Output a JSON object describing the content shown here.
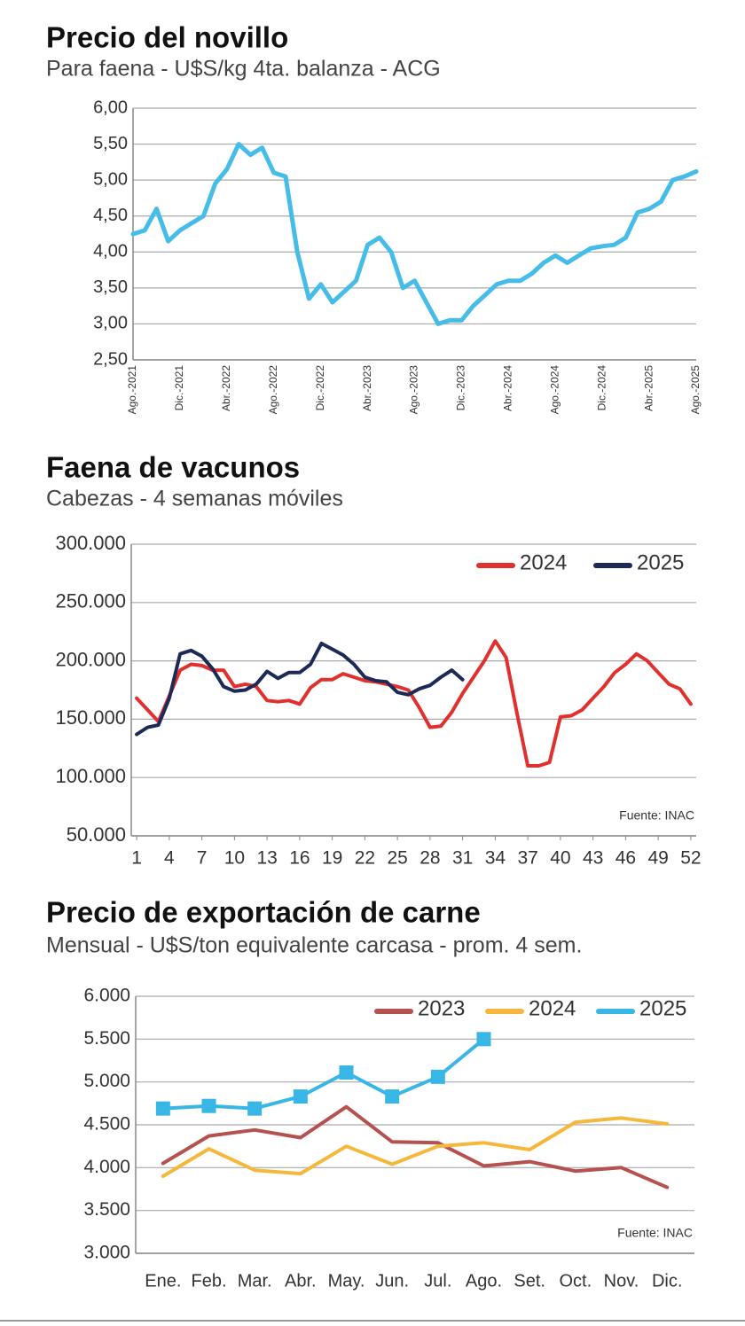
{
  "chart_data": [
    {
      "type": "line",
      "title": "Precio del novillo",
      "subtitle": "Para faena - U$S/kg 4ta. balanza - ACG",
      "categories": [
        "Ago.-2021",
        null,
        null,
        null,
        "Dic.-2021",
        null,
        null,
        null,
        "Abr.-2022",
        null,
        null,
        null,
        "Ago.-2022",
        null,
        null,
        null,
        "Dic.-2022",
        null,
        null,
        null,
        "Abr.-2023",
        null,
        null,
        null,
        "Ago.-2023",
        null,
        null,
        null,
        "Dic.-2023",
        null,
        null,
        null,
        "Abr.-2024",
        null,
        null,
        null,
        "Ago.-2024",
        null,
        null,
        null,
        "Dic.-2024",
        null,
        null,
        null,
        "Abr.-2025",
        null,
        null,
        null,
        "Ago.-2025"
      ],
      "values": [
        4.25,
        4.3,
        4.6,
        4.15,
        4.3,
        4.4,
        4.5,
        4.95,
        5.15,
        5.5,
        5.35,
        5.45,
        5.1,
        5.05,
        4.0,
        3.35,
        3.55,
        3.3,
        3.45,
        3.6,
        4.1,
        4.2,
        4.0,
        3.5,
        3.6,
        3.3,
        3.0,
        3.05,
        3.05,
        3.25,
        3.4,
        3.55,
        3.6,
        3.6,
        3.7,
        3.85,
        3.95,
        3.85,
        3.95,
        4.05,
        4.08,
        4.1,
        4.2,
        4.55,
        4.6,
        4.7,
        5.0,
        5.05,
        5.12
      ],
      "color": "#45bde8",
      "ylim": [
        2.5,
        6
      ],
      "yticks": [
        {
          "value": 2.5,
          "label": "2,50"
        },
        {
          "value": 3,
          "label": "3,00"
        },
        {
          "value": 3.5,
          "label": "3,50"
        },
        {
          "value": 4,
          "label": "4,00"
        },
        {
          "value": 4.5,
          "label": "4,50"
        },
        {
          "value": 5,
          "label": "5,00"
        },
        {
          "value": 5.5,
          "label": "5,50"
        },
        {
          "value": 6,
          "label": "6,00"
        }
      ],
      "grid": true
    },
    {
      "type": "line",
      "title": "Faena de vacunos",
      "subtitle": "Cabezas - 4 semanas móviles",
      "x": [
        1,
        2,
        3,
        4,
        5,
        6,
        7,
        8,
        9,
        10,
        11,
        12,
        13,
        14,
        15,
        16,
        17,
        18,
        19,
        20,
        21,
        22,
        23,
        24,
        25,
        26,
        27,
        28,
        29,
        30,
        31,
        32,
        33,
        34,
        35,
        36,
        37,
        38,
        39,
        40,
        41,
        42,
        43,
        44,
        45,
        46,
        47,
        48,
        49,
        50,
        51,
        52
      ],
      "series": [
        {
          "name": "2024",
          "color": "#e0312f",
          "values": [
            168000,
            158000,
            148000,
            170000,
            192000,
            197000,
            196000,
            192000,
            192000,
            178000,
            180000,
            178000,
            166000,
            165000,
            166000,
            163000,
            177000,
            184000,
            184000,
            189000,
            186000,
            183000,
            182000,
            180000,
            178000,
            175000,
            160000,
            143000,
            144000,
            156000,
            172000,
            186000,
            200000,
            217000,
            203000,
            155000,
            110000,
            110000,
            113000,
            152000,
            153000,
            158000,
            168000,
            178000,
            190000,
            197000,
            206000,
            200000,
            190000,
            180000,
            176000,
            163000
          ]
        },
        {
          "name": "2025",
          "color": "#1d2a55",
          "values": [
            137000,
            143000,
            145000,
            168000,
            206000,
            209000,
            204000,
            193000,
            178000,
            174000,
            175000,
            180000,
            191000,
            185000,
            190000,
            190000,
            197000,
            215000,
            210000,
            205000,
            197000,
            186000,
            183000,
            182000,
            173000,
            171000,
            176000,
            179000,
            186000,
            192000,
            184000,
            null,
            null,
            null,
            null,
            null,
            null,
            null,
            null,
            null,
            null,
            null,
            null,
            null,
            null,
            null,
            null,
            null,
            null,
            null,
            null,
            null
          ]
        }
      ],
      "xlim": [
        0.5,
        52.5
      ],
      "xticks": [
        1,
        4,
        7,
        10,
        13,
        16,
        19,
        22,
        25,
        28,
        31,
        34,
        37,
        40,
        43,
        46,
        49,
        52
      ],
      "ylim": [
        50000,
        300000
      ],
      "yticks": [
        {
          "value": 50000,
          "label": "50.000"
        },
        {
          "value": 100000,
          "label": "100.000"
        },
        {
          "value": 150000,
          "label": "150.000"
        },
        {
          "value": 200000,
          "label": "200.000"
        },
        {
          "value": 250000,
          "label": "250.000"
        },
        {
          "value": 300000,
          "label": "300.000"
        }
      ],
      "grid": true,
      "legend": "upper right",
      "annotation": "Fuente: INAC"
    },
    {
      "type": "line",
      "title": "Precio de exportación de carne",
      "subtitle": "Mensual - U$S/ton equivalente carcasa - prom. 4 sem.",
      "categories": [
        "Ene.",
        "Feb.",
        "Mar.",
        "Abr.",
        "May.",
        "Jun.",
        "Jul.",
        "Ago.",
        "Set.",
        "Oct.",
        "Nov.",
        "Dic."
      ],
      "series": [
        {
          "name": "2023",
          "color": "#b5524f",
          "values": [
            4050,
            4370,
            4440,
            4350,
            4710,
            4300,
            4290,
            4020,
            4070,
            3960,
            4000,
            3770
          ]
        },
        {
          "name": "2024",
          "color": "#f5b83c",
          "values": [
            3900,
            4220,
            3970,
            3930,
            4250,
            4040,
            4250,
            4290,
            4210,
            4530,
            4580,
            4510
          ]
        },
        {
          "name": "2025",
          "color": "#38b6e6",
          "marker": "square",
          "values": [
            4690,
            4720,
            4690,
            4830,
            5110,
            4830,
            5060,
            5500,
            null,
            null,
            null,
            null
          ]
        }
      ],
      "ylim": [
        3000,
        6000
      ],
      "yticks": [
        {
          "value": 3000,
          "label": "3.000"
        },
        {
          "value": 3500,
          "label": "3.500"
        },
        {
          "value": 4000,
          "label": "4.000"
        },
        {
          "value": 4500,
          "label": "4.500"
        },
        {
          "value": 5000,
          "label": "5.000"
        },
        {
          "value": 5500,
          "label": "5.500"
        },
        {
          "value": 6000,
          "label": "6.000"
        }
      ],
      "grid": true,
      "legend": "upper right",
      "annotation": "Fuente: INAC"
    }
  ]
}
